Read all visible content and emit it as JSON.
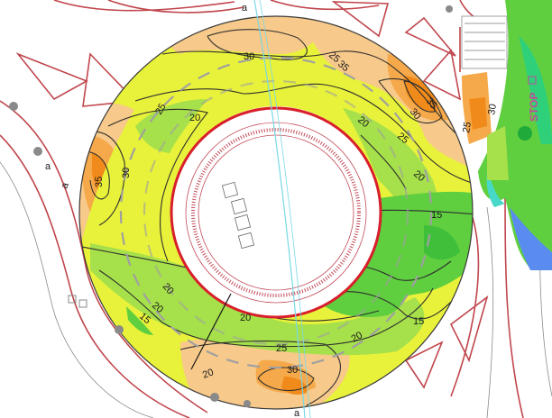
{
  "map": {
    "colors": {
      "band_15": "#5fcf3f",
      "band_15_20": "#a6e04a",
      "band_20_25": "#e8f23a",
      "band_25_30": "#f7c98a",
      "band_30_35": "#f6a94a",
      "band_35_plus": "#f08a1a",
      "road_edge": "#c0464d",
      "sidewalk": "#8a8a8a",
      "cycle_track": "#79d8e6"
    },
    "contour_labels": [
      {
        "id": "c1",
        "text": "30"
      },
      {
        "id": "c2",
        "text": "25"
      },
      {
        "id": "c3",
        "text": "35"
      },
      {
        "id": "c4",
        "text": "25"
      },
      {
        "id": "c5",
        "text": "20"
      },
      {
        "id": "c6",
        "text": "35"
      },
      {
        "id": "c7",
        "text": "30"
      },
      {
        "id": "c8",
        "text": "35"
      },
      {
        "id": "c9",
        "text": "30"
      },
      {
        "id": "c10",
        "text": "20"
      },
      {
        "id": "c11",
        "text": "25"
      },
      {
        "id": "c12",
        "text": "30"
      },
      {
        "id": "c13",
        "text": "15"
      },
      {
        "id": "c14",
        "text": "20"
      },
      {
        "id": "c15",
        "text": "20"
      },
      {
        "id": "c16",
        "text": "15"
      },
      {
        "id": "c17",
        "text": "20"
      },
      {
        "id": "c18",
        "text": "15"
      },
      {
        "id": "c19",
        "text": "20"
      },
      {
        "id": "c20",
        "text": "25"
      },
      {
        "id": "c21",
        "text": "30"
      },
      {
        "id": "c22",
        "text": "20"
      },
      {
        "id": "c23",
        "text": "20"
      },
      {
        "id": "c24",
        "text": "25"
      }
    ],
    "stop_text": "STOP",
    "road_markers": [
      "a",
      "a",
      "a",
      "a"
    ]
  }
}
